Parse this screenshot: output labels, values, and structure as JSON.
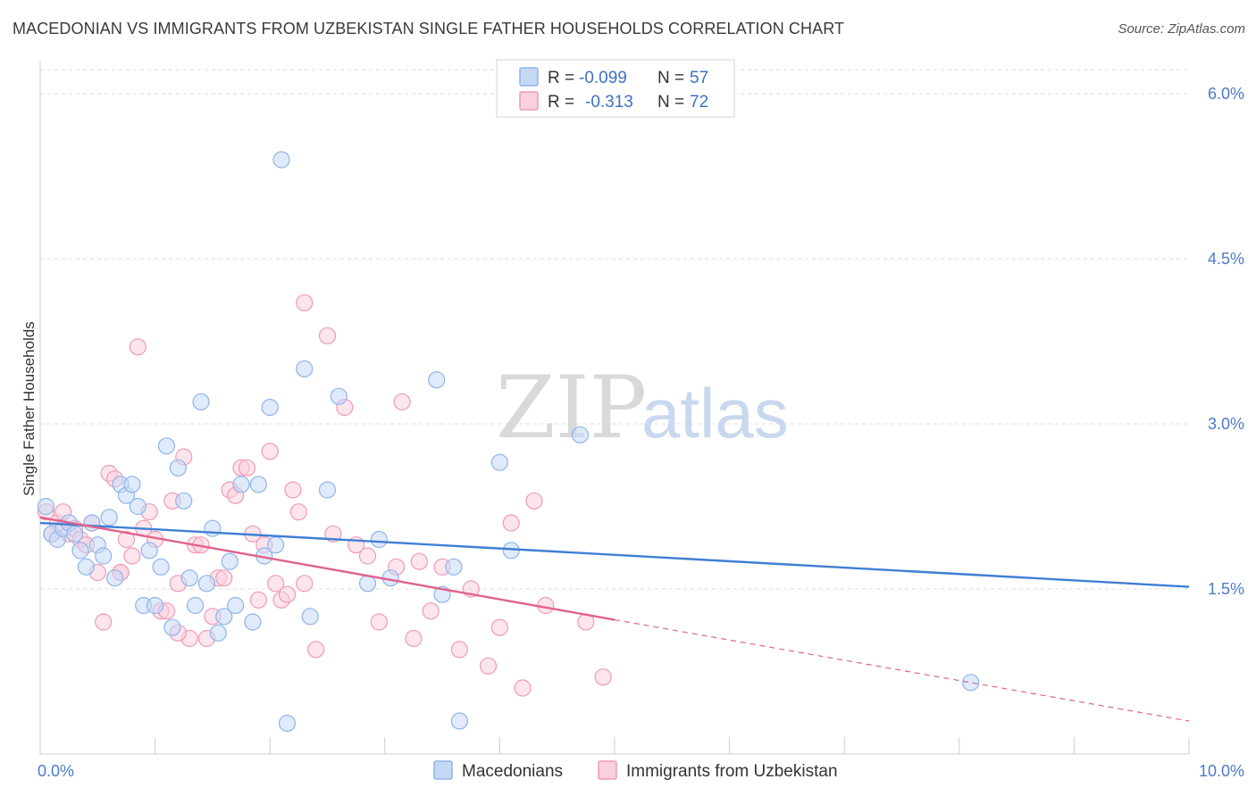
{
  "title": "MACEDONIAN VS IMMIGRANTS FROM UZBEKISTAN SINGLE FATHER HOUSEHOLDS CORRELATION CHART",
  "source": "Source: ZipAtlas.com",
  "watermark": {
    "zip": "ZIP",
    "atlas": "atlas"
  },
  "legend": {
    "r_label": "R =",
    "n_label": "N =",
    "rows": [
      {
        "r": "-0.099",
        "n": "57",
        "color": "#8fb4e8",
        "fill": "#c5d9f5"
      },
      {
        "r": "-0.313",
        "n": "72",
        "color": "#ef9ab6",
        "fill": "#f9d0de"
      }
    ]
  },
  "bottom_legend": [
    {
      "label": "Macedonians",
      "fill": "#c5d9f5",
      "stroke": "#8fb4e8"
    },
    {
      "label": "Immigrants from Uzbekistan",
      "fill": "#f9d0de",
      "stroke": "#ef9ab6"
    }
  ],
  "chart_data": {
    "type": "scatter",
    "title": "MACEDONIAN VS IMMIGRANTS FROM UZBEKISTAN SINGLE FATHER HOUSEHOLDS CORRELATION CHART",
    "xlabel": "",
    "ylabel": "Single Father Households",
    "xlim": [
      0,
      10
    ],
    "ylim": [
      0,
      6.3
    ],
    "x_tick_labels": [
      "0.0%",
      "10.0%"
    ],
    "y_ticks": [
      1.5,
      3.0,
      4.5,
      6.0
    ],
    "y_tick_labels": [
      "1.5%",
      "3.0%",
      "4.5%",
      "6.0%"
    ],
    "grid": true,
    "legend_position": "top-center",
    "series": [
      {
        "name": "Macedonians",
        "color": "#3f7fd4",
        "fill": "#c5d9f5",
        "stroke": "#8fb4e8",
        "trend": {
          "x": [
            0,
            10
          ],
          "y": [
            2.1,
            1.52
          ],
          "dashed_from": null
        },
        "points": [
          [
            0.05,
            2.25
          ],
          [
            0.1,
            2.0
          ],
          [
            0.15,
            1.95
          ],
          [
            0.2,
            2.05
          ],
          [
            0.25,
            2.1
          ],
          [
            0.3,
            2.0
          ],
          [
            0.35,
            1.85
          ],
          [
            0.4,
            1.7
          ],
          [
            0.45,
            2.1
          ],
          [
            0.5,
            1.9
          ],
          [
            0.55,
            1.8
          ],
          [
            0.6,
            2.15
          ],
          [
            0.65,
            1.6
          ],
          [
            0.7,
            2.45
          ],
          [
            0.75,
            2.35
          ],
          [
            0.8,
            2.45
          ],
          [
            0.85,
            2.25
          ],
          [
            0.9,
            1.35
          ],
          [
            0.95,
            1.85
          ],
          [
            1.0,
            1.35
          ],
          [
            1.05,
            1.7
          ],
          [
            1.1,
            2.8
          ],
          [
            1.15,
            1.15
          ],
          [
            1.2,
            2.6
          ],
          [
            1.25,
            2.3
          ],
          [
            1.3,
            1.6
          ],
          [
            1.35,
            1.35
          ],
          [
            1.4,
            3.2
          ],
          [
            1.45,
            1.55
          ],
          [
            1.5,
            2.05
          ],
          [
            1.55,
            1.1
          ],
          [
            1.6,
            1.25
          ],
          [
            1.65,
            1.75
          ],
          [
            1.7,
            1.35
          ],
          [
            1.75,
            2.45
          ],
          [
            1.85,
            1.2
          ],
          [
            1.9,
            2.45
          ],
          [
            1.95,
            1.8
          ],
          [
            2.0,
            3.15
          ],
          [
            2.05,
            1.9
          ],
          [
            2.1,
            5.4
          ],
          [
            2.15,
            0.28
          ],
          [
            2.3,
            3.5
          ],
          [
            2.35,
            1.25
          ],
          [
            2.5,
            2.4
          ],
          [
            2.6,
            3.25
          ],
          [
            2.85,
            1.55
          ],
          [
            2.95,
            1.95
          ],
          [
            3.05,
            1.6
          ],
          [
            3.45,
            3.4
          ],
          [
            3.5,
            1.45
          ],
          [
            3.6,
            1.7
          ],
          [
            3.65,
            0.3
          ],
          [
            4.0,
            2.65
          ],
          [
            4.1,
            1.85
          ],
          [
            4.7,
            2.9
          ],
          [
            8.1,
            0.65
          ]
        ]
      },
      {
        "name": "Immigrants from Uzbekistan",
        "color": "#e0628e",
        "fill": "#f9d0de",
        "stroke": "#ef9ab6",
        "trend": {
          "x": [
            0,
            5,
            10
          ],
          "y": [
            2.15,
            1.22,
            0.3
          ],
          "dashed_from": 5
        },
        "points": [
          [
            0.05,
            2.2
          ],
          [
            0.1,
            2.0
          ],
          [
            0.15,
            2.1
          ],
          [
            0.2,
            2.2
          ],
          [
            0.25,
            2.0
          ],
          [
            0.3,
            2.05
          ],
          [
            0.35,
            1.95
          ],
          [
            0.4,
            1.9
          ],
          [
            0.45,
            2.1
          ],
          [
            0.5,
            1.65
          ],
          [
            0.55,
            1.2
          ],
          [
            0.6,
            2.55
          ],
          [
            0.65,
            2.5
          ],
          [
            0.7,
            1.65
          ],
          [
            0.75,
            1.95
          ],
          [
            0.8,
            1.8
          ],
          [
            0.85,
            3.7
          ],
          [
            0.9,
            2.05
          ],
          [
            0.95,
            2.2
          ],
          [
            1.0,
            1.95
          ],
          [
            1.05,
            1.3
          ],
          [
            1.1,
            1.3
          ],
          [
            1.15,
            2.3
          ],
          [
            1.2,
            1.55
          ],
          [
            1.25,
            2.7
          ],
          [
            1.3,
            1.05
          ],
          [
            1.35,
            1.9
          ],
          [
            1.4,
            1.9
          ],
          [
            1.45,
            1.05
          ],
          [
            1.5,
            1.25
          ],
          [
            1.55,
            1.6
          ],
          [
            1.6,
            1.6
          ],
          [
            1.65,
            2.4
          ],
          [
            1.7,
            2.35
          ],
          [
            1.75,
            2.6
          ],
          [
            1.8,
            2.6
          ],
          [
            1.85,
            2.0
          ],
          [
            1.9,
            1.4
          ],
          [
            1.95,
            1.9
          ],
          [
            2.0,
            2.75
          ],
          [
            2.05,
            1.55
          ],
          [
            2.1,
            1.4
          ],
          [
            2.15,
            1.45
          ],
          [
            2.2,
            2.4
          ],
          [
            2.25,
            2.2
          ],
          [
            2.3,
            4.1
          ],
          [
            2.4,
            0.95
          ],
          [
            2.5,
            3.8
          ],
          [
            2.55,
            2.0
          ],
          [
            2.65,
            3.15
          ],
          [
            2.75,
            1.9
          ],
          [
            2.85,
            1.8
          ],
          [
            2.95,
            1.2
          ],
          [
            3.1,
            1.7
          ],
          [
            3.15,
            3.2
          ],
          [
            3.25,
            1.05
          ],
          [
            3.3,
            1.75
          ],
          [
            3.4,
            1.3
          ],
          [
            3.5,
            1.7
          ],
          [
            3.65,
            0.95
          ],
          [
            3.75,
            1.5
          ],
          [
            3.9,
            0.8
          ],
          [
            4.0,
            1.15
          ],
          [
            4.1,
            2.1
          ],
          [
            4.2,
            0.6
          ],
          [
            4.3,
            2.3
          ],
          [
            4.4,
            1.35
          ],
          [
            4.75,
            1.2
          ],
          [
            4.9,
            0.7
          ],
          [
            2.3,
            1.55
          ],
          [
            1.2,
            1.1
          ],
          [
            0.7,
            1.65
          ]
        ]
      }
    ]
  }
}
